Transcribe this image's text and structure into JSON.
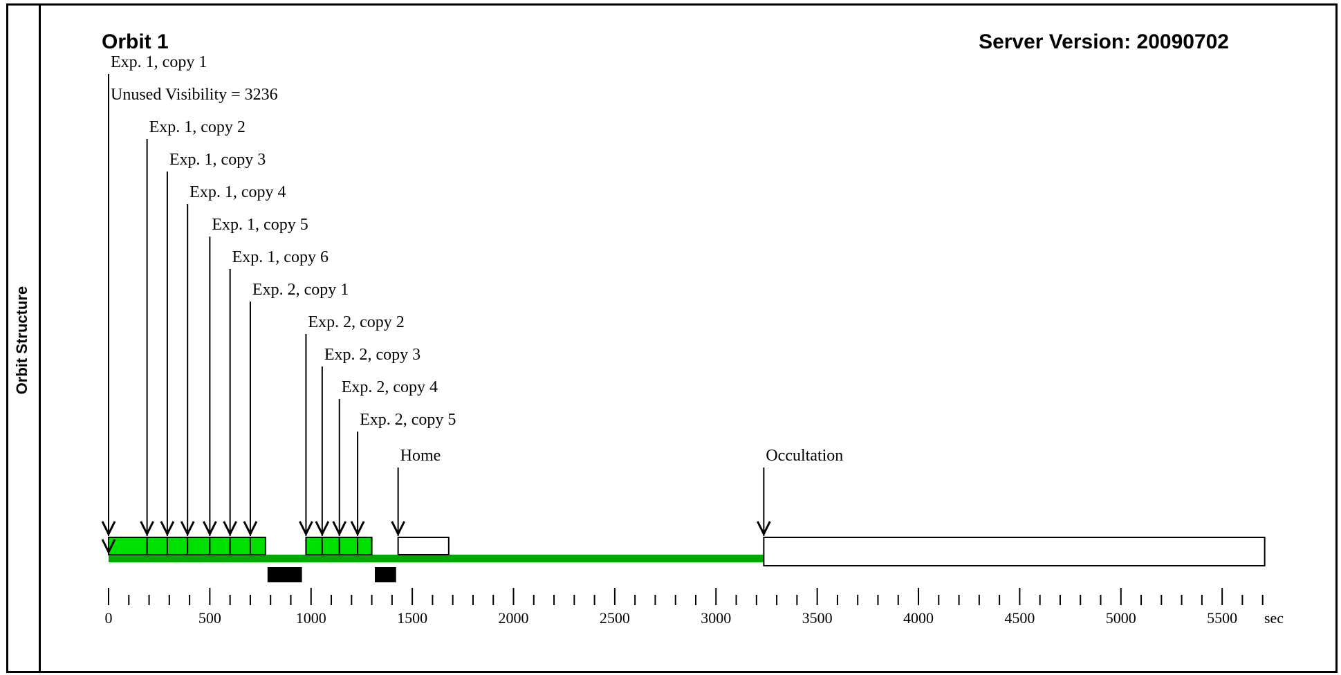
{
  "sidebar": {
    "title": "Orbit Structure"
  },
  "header": {
    "orbit_title": "Orbit 1",
    "server_version": "Server Version: 20090702"
  },
  "chart_data": {
    "type": "timeline",
    "x_unit": "sec",
    "xlim": [
      0,
      5700
    ],
    "x_ticks": [
      0,
      500,
      1000,
      1500,
      2000,
      2500,
      3000,
      3500,
      4000,
      4500,
      5000,
      5500
    ],
    "minor_tick_step": 100,
    "events": [
      {
        "label": "Exp. 1, copy 1",
        "t": 0
      },
      {
        "label": "Unused Visibility = 3236",
        "t": 0
      },
      {
        "label": "Exp. 1, copy 2",
        "t": 190
      },
      {
        "label": "Exp. 1, copy 3",
        "t": 290
      },
      {
        "label": "Exp. 1, copy 4",
        "t": 390
      },
      {
        "label": "Exp. 1, copy 5",
        "t": 500
      },
      {
        "label": "Exp. 1, copy 6",
        "t": 600
      },
      {
        "label": "Exp. 2, copy 1",
        "t": 700
      },
      {
        "label": "Exp. 2, copy 2",
        "t": 975
      },
      {
        "label": "Exp. 2, copy 3",
        "t": 1055
      },
      {
        "label": "Exp. 2, copy 4",
        "t": 1140
      },
      {
        "label": "Exp. 2, copy 5",
        "t": 1230
      },
      {
        "label": "Home",
        "t": 1430
      },
      {
        "label": "Occultation",
        "t": 3236
      }
    ],
    "exposure_blocks": [
      {
        "start": 0,
        "end": 190
      },
      {
        "start": 190,
        "end": 290
      },
      {
        "start": 290,
        "end": 390
      },
      {
        "start": 390,
        "end": 500
      },
      {
        "start": 500,
        "end": 600
      },
      {
        "start": 600,
        "end": 700
      },
      {
        "start": 700,
        "end": 775
      },
      {
        "start": 975,
        "end": 1055
      },
      {
        "start": 1055,
        "end": 1140
      },
      {
        "start": 1140,
        "end": 1230
      },
      {
        "start": 1230,
        "end": 1300
      }
    ],
    "home_block": {
      "start": 1430,
      "end": 1680
    },
    "occultation_block": {
      "start": 3236,
      "end": 5710
    },
    "visibility_bar": {
      "start": 0,
      "end": 3236
    },
    "black_blocks": [
      {
        "start": 785,
        "end": 955
      },
      {
        "start": 1315,
        "end": 1420
      }
    ],
    "colors": {
      "exposure": "#00e000",
      "visibility": "#00a800",
      "black": "#000000",
      "occultation": "#ffffff"
    }
  }
}
